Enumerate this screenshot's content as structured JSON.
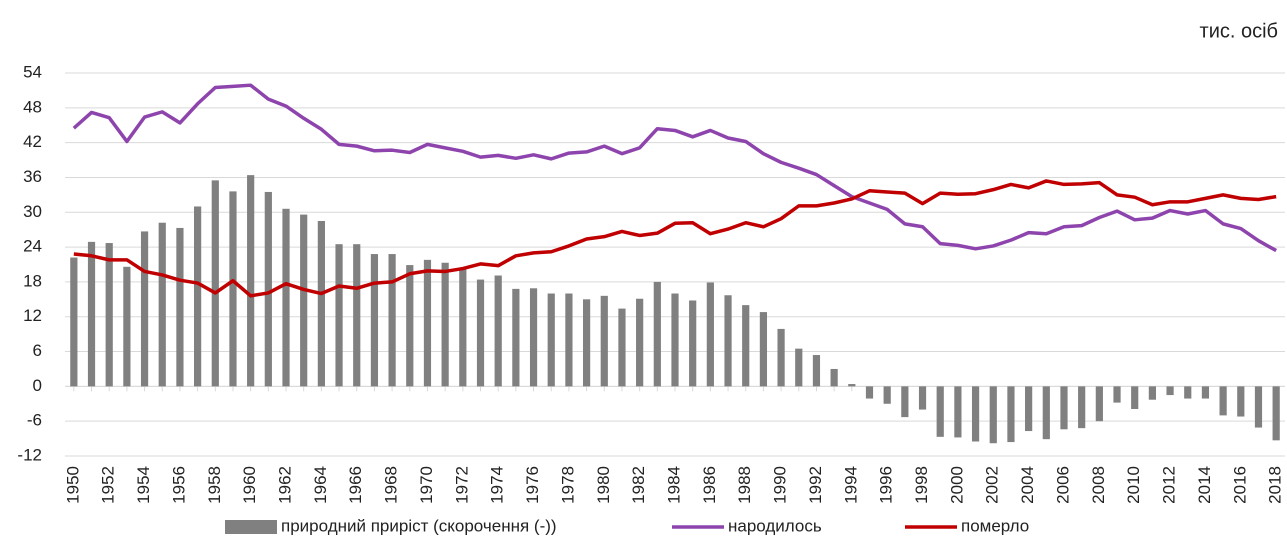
{
  "chart_data": {
    "type": "bar_line",
    "unit_label": "тис. осіб",
    "categories": [
      "1950",
      null,
      "1952",
      null,
      "1954",
      null,
      "1956",
      null,
      "1958",
      null,
      "1960",
      null,
      "1962",
      null,
      "1964",
      null,
      "1966",
      null,
      "1968",
      null,
      "1970",
      null,
      "1972",
      null,
      "1974",
      null,
      "1976",
      null,
      "1978",
      null,
      "1980",
      null,
      "1982",
      null,
      "1984",
      null,
      "1986",
      null,
      "1988",
      null,
      "1990",
      null,
      "1992",
      null,
      "1994",
      null,
      "1996",
      null,
      "1998",
      null,
      "2000",
      null,
      "2002",
      null,
      "2004",
      null,
      "2006",
      null,
      "2008",
      null,
      "2010",
      null,
      "2012",
      null,
      "2014",
      null,
      "2016",
      null,
      "2018"
    ],
    "series": [
      {
        "name": "природний приріст (скорочення (-))",
        "type": "bar",
        "color": "#808080",
        "values": [
          22.2,
          24.9,
          24.7,
          20.6,
          26.7,
          28.2,
          27.3,
          31.0,
          35.5,
          33.6,
          36.4,
          33.5,
          30.6,
          29.6,
          28.5,
          24.5,
          24.5,
          22.8,
          22.8,
          20.9,
          21.8,
          21.3,
          20.2,
          18.4,
          19.1,
          16.8,
          16.9,
          16.0,
          16.0,
          15.0,
          15.6,
          13.4,
          15.1,
          18.0,
          16.0,
          14.8,
          17.9,
          15.7,
          14.0,
          12.8,
          9.9,
          6.5,
          5.4,
          3.0,
          0.4,
          -2.1,
          -3.0,
          -5.3,
          -4.0,
          -8.7,
          -8.8,
          -9.5,
          -9.8,
          -9.6,
          -7.7,
          -9.1,
          -7.4,
          -7.2,
          -6.0,
          -2.8,
          -3.9,
          -2.3,
          -1.5,
          -2.1,
          -2.1,
          -5.0,
          -5.2,
          -7.1,
          -9.3
        ]
      },
      {
        "name": "народилось",
        "type": "line",
        "color": "#8e44ad",
        "values": [
          44.5,
          47.2,
          46.3,
          42.2,
          46.4,
          47.3,
          45.4,
          48.7,
          51.5,
          51.7,
          51.9,
          49.5,
          48.3,
          46.2,
          44.3,
          41.7,
          41.4,
          40.6,
          40.7,
          40.3,
          41.7,
          41.1,
          40.5,
          39.5,
          39.8,
          39.3,
          39.9,
          39.2,
          40.2,
          40.4,
          41.4,
          40.1,
          41.1,
          44.4,
          44.1,
          43.0,
          44.1,
          42.8,
          42.2,
          40.1,
          38.6,
          37.6,
          36.5,
          34.6,
          32.7,
          31.6,
          30.5,
          28.0,
          27.5,
          24.6,
          24.3,
          23.7,
          24.2,
          25.2,
          26.5,
          26.3,
          27.5,
          27.7,
          29.1,
          30.2,
          28.7,
          29.0,
          30.3,
          29.7,
          30.3,
          28.0,
          27.2,
          25.1,
          23.4
        ]
      },
      {
        "name": "померло",
        "type": "line",
        "color": "#c00000",
        "values": [
          22.8,
          22.5,
          21.8,
          21.8,
          19.8,
          19.2,
          18.3,
          17.8,
          16.1,
          18.2,
          15.6,
          16.1,
          17.7,
          16.7,
          16.0,
          17.3,
          16.9,
          17.8,
          18.0,
          19.4,
          19.9,
          19.8,
          20.3,
          21.1,
          20.8,
          22.5,
          23.0,
          23.2,
          24.2,
          25.4,
          25.8,
          26.7,
          26.0,
          26.4,
          28.1,
          28.2,
          26.3,
          27.1,
          28.2,
          27.5,
          28.9,
          31.1,
          31.1,
          31.6,
          32.3,
          33.7,
          33.5,
          33.3,
          31.5,
          33.3,
          33.1,
          33.2,
          33.9,
          34.8,
          34.2,
          35.4,
          34.8,
          34.9,
          35.1,
          33.0,
          32.6,
          31.3,
          31.8,
          31.8,
          32.4,
          33.0,
          32.4,
          32.2,
          32.7
        ]
      }
    ],
    "ylim": [
      -12,
      54
    ],
    "yticks": [
      -12,
      -6,
      0,
      6,
      12,
      18,
      24,
      30,
      36,
      42,
      48,
      54
    ],
    "grid": true,
    "legend": "bottom"
  }
}
